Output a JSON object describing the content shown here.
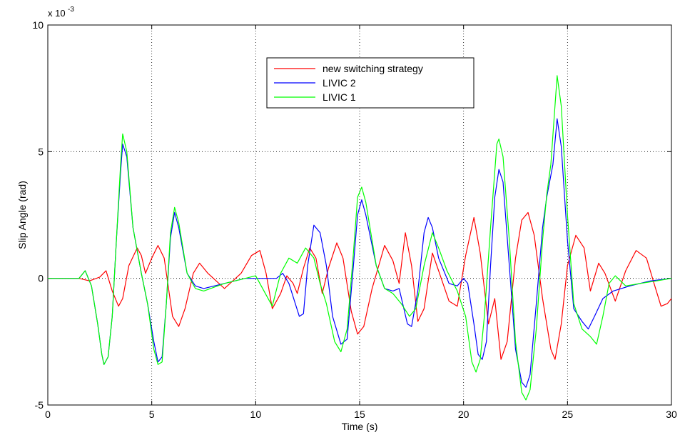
{
  "chart_data": {
    "type": "line",
    "title": "",
    "xlabel": "Time (s)",
    "ylabel": "Slip Angle (rad)",
    "scale_exponent_label": "x 10",
    "scale_exponent_value": "-3",
    "xlim": [
      0,
      30
    ],
    "ylim": [
      -5,
      10
    ],
    "xticks": [
      0,
      5,
      10,
      15,
      20,
      25,
      30
    ],
    "yticks": [
      -5,
      0,
      5,
      10
    ],
    "xtick_labels": [
      "0",
      "5",
      "10",
      "15",
      "20",
      "25",
      "30"
    ],
    "ytick_labels": [
      "-5",
      "0",
      "5",
      "10"
    ],
    "grid": true,
    "legend_position": "top-center",
    "series": [
      {
        "name": "new switching strategy",
        "color": "#ff0000",
        "points": [
          [
            0,
            0
          ],
          [
            1.5,
            0
          ],
          [
            2,
            -0.1
          ],
          [
            2.5,
            0.05
          ],
          [
            2.8,
            0.3
          ],
          [
            3.1,
            -0.5
          ],
          [
            3.4,
            -1.1
          ],
          [
            3.6,
            -0.8
          ],
          [
            3.9,
            0.5
          ],
          [
            4.3,
            1.2
          ],
          [
            4.5,
            0.9
          ],
          [
            4.7,
            0.2
          ],
          [
            5,
            0.8
          ],
          [
            5.3,
            1.3
          ],
          [
            5.6,
            0.8
          ],
          [
            6,
            -1.5
          ],
          [
            6.3,
            -1.9
          ],
          [
            6.6,
            -1.2
          ],
          [
            7,
            0.2
          ],
          [
            7.3,
            0.6
          ],
          [
            7.7,
            0.2
          ],
          [
            8.5,
            -0.4
          ],
          [
            9.3,
            0.2
          ],
          [
            9.8,
            0.9
          ],
          [
            10.2,
            1.1
          ],
          [
            10.5,
            0.2
          ],
          [
            10.8,
            -1.2
          ],
          [
            11.2,
            -0.6
          ],
          [
            11.5,
            0.1
          ],
          [
            11.8,
            -0.2
          ],
          [
            12,
            -0.6
          ],
          [
            12.3,
            0.4
          ],
          [
            12.6,
            1.2
          ],
          [
            12.9,
            0.8
          ],
          [
            13.2,
            -0.6
          ],
          [
            13.5,
            0.4
          ],
          [
            13.9,
            1.4
          ],
          [
            14.2,
            0.8
          ],
          [
            14.6,
            -1.3
          ],
          [
            14.9,
            -2.2
          ],
          [
            15.2,
            -1.9
          ],
          [
            15.6,
            -0.4
          ],
          [
            16.2,
            1.3
          ],
          [
            16.6,
            0.7
          ],
          [
            16.9,
            -0.2
          ],
          [
            17.2,
            1.8
          ],
          [
            17.5,
            0.5
          ],
          [
            17.8,
            -1.7
          ],
          [
            18.1,
            -1.2
          ],
          [
            18.5,
            1.0
          ],
          [
            18.8,
            0.3
          ],
          [
            19.3,
            -0.9
          ],
          [
            19.7,
            -1.1
          ],
          [
            20.1,
            0.9
          ],
          [
            20.5,
            2.4
          ],
          [
            20.8,
            1.0
          ],
          [
            21.2,
            -1.8
          ],
          [
            21.5,
            -0.8
          ],
          [
            21.8,
            -3.2
          ],
          [
            22.1,
            -2.5
          ],
          [
            22.5,
            0.8
          ],
          [
            22.8,
            2.3
          ],
          [
            23.1,
            2.6
          ],
          [
            23.4,
            1.7
          ],
          [
            23.8,
            -0.8
          ],
          [
            24.2,
            -2.8
          ],
          [
            24.4,
            -3.2
          ],
          [
            24.7,
            -1.8
          ],
          [
            25,
            0.5
          ],
          [
            25.4,
            1.7
          ],
          [
            25.8,
            1.2
          ],
          [
            26.1,
            -0.5
          ],
          [
            26.5,
            0.6
          ],
          [
            26.8,
            0.2
          ],
          [
            27.3,
            -0.9
          ],
          [
            27.8,
            0.3
          ],
          [
            28.3,
            1.1
          ],
          [
            28.8,
            0.8
          ],
          [
            29.2,
            -0.3
          ],
          [
            29.5,
            -1.1
          ],
          [
            29.8,
            -1.0
          ],
          [
            30,
            -0.8
          ]
        ]
      },
      {
        "name": "LIVIC 2",
        "color": "#0000ff",
        "points": [
          [
            0,
            0
          ],
          [
            1.5,
            0
          ],
          [
            1.8,
            0.3
          ],
          [
            2.1,
            -0.3
          ],
          [
            2.4,
            -1.8
          ],
          [
            2.6,
            -3.0
          ],
          [
            2.7,
            -3.4
          ],
          [
            2.9,
            -3.1
          ],
          [
            3.1,
            -1.5
          ],
          [
            3.3,
            1.5
          ],
          [
            3.5,
            4.2
          ],
          [
            3.6,
            5.3
          ],
          [
            3.8,
            4.8
          ],
          [
            4.1,
            2.0
          ],
          [
            4.5,
            0.2
          ],
          [
            4.8,
            -1.0
          ],
          [
            5.1,
            -2.5
          ],
          [
            5.3,
            -3.3
          ],
          [
            5.5,
            -3.1
          ],
          [
            5.7,
            -1.0
          ],
          [
            5.9,
            1.6
          ],
          [
            6.1,
            2.6
          ],
          [
            6.3,
            2.0
          ],
          [
            6.7,
            0.2
          ],
          [
            7.1,
            -0.3
          ],
          [
            7.5,
            -0.4
          ],
          [
            8.5,
            -0.2
          ],
          [
            9.5,
            0
          ],
          [
            10,
            0
          ],
          [
            11,
            0
          ],
          [
            11.3,
            0.2
          ],
          [
            11.6,
            -0.2
          ],
          [
            12.1,
            -1.5
          ],
          [
            12.3,
            -1.4
          ],
          [
            12.5,
            0.5
          ],
          [
            12.8,
            2.1
          ],
          [
            13.1,
            1.8
          ],
          [
            13.4,
            0.5
          ],
          [
            13.7,
            -1.5
          ],
          [
            14.1,
            -2.6
          ],
          [
            14.4,
            -2.4
          ],
          [
            14.7,
            0.5
          ],
          [
            14.9,
            2.5
          ],
          [
            15.1,
            3.1
          ],
          [
            15.3,
            2.5
          ],
          [
            15.8,
            0.5
          ],
          [
            16.2,
            -0.4
          ],
          [
            16.6,
            -0.5
          ],
          [
            16.9,
            -0.4
          ],
          [
            17.3,
            -1.8
          ],
          [
            17.5,
            -1.9
          ],
          [
            17.8,
            -0.5
          ],
          [
            18.1,
            1.8
          ],
          [
            18.3,
            2.4
          ],
          [
            18.5,
            2.0
          ],
          [
            18.8,
            0.8
          ],
          [
            19.3,
            -0.2
          ],
          [
            19.7,
            -0.3
          ],
          [
            20,
            0
          ],
          [
            20.2,
            -0.2
          ],
          [
            20.5,
            -1.8
          ],
          [
            20.7,
            -3.0
          ],
          [
            20.9,
            -3.2
          ],
          [
            21.1,
            -2.5
          ],
          [
            21.3,
            0.5
          ],
          [
            21.5,
            3.2
          ],
          [
            21.7,
            4.3
          ],
          [
            21.9,
            3.8
          ],
          [
            22.2,
            0.5
          ],
          [
            22.5,
            -2.8
          ],
          [
            22.8,
            -4.1
          ],
          [
            23,
            -4.3
          ],
          [
            23.2,
            -3.8
          ],
          [
            23.5,
            -1.0
          ],
          [
            23.8,
            2.0
          ],
          [
            24,
            3.2
          ],
          [
            24.3,
            4.5
          ],
          [
            24.5,
            6.3
          ],
          [
            24.7,
            5.2
          ],
          [
            25,
            1.5
          ],
          [
            25.3,
            -1.2
          ],
          [
            25.7,
            -1.7
          ],
          [
            26,
            -2.0
          ],
          [
            26.3,
            -1.5
          ],
          [
            26.7,
            -0.8
          ],
          [
            27.2,
            -0.5
          ],
          [
            28,
            -0.3
          ],
          [
            29,
            -0.1
          ],
          [
            30,
            0
          ]
        ]
      },
      {
        "name": "LIVIC 1",
        "color": "#00ff00",
        "points": [
          [
            0,
            0
          ],
          [
            1.5,
            0
          ],
          [
            1.8,
            0.3
          ],
          [
            2.1,
            -0.3
          ],
          [
            2.4,
            -1.8
          ],
          [
            2.6,
            -3.0
          ],
          [
            2.7,
            -3.4
          ],
          [
            2.9,
            -3.1
          ],
          [
            3.1,
            -1.5
          ],
          [
            3.3,
            1.5
          ],
          [
            3.5,
            4.5
          ],
          [
            3.6,
            5.7
          ],
          [
            3.8,
            5.0
          ],
          [
            4.1,
            2.0
          ],
          [
            4.5,
            0.2
          ],
          [
            4.8,
            -1.0
          ],
          [
            5.1,
            -2.8
          ],
          [
            5.3,
            -3.4
          ],
          [
            5.5,
            -3.3
          ],
          [
            5.7,
            -1.0
          ],
          [
            5.9,
            1.8
          ],
          [
            6.1,
            2.8
          ],
          [
            6.3,
            2.2
          ],
          [
            6.7,
            0.2
          ],
          [
            7.1,
            -0.4
          ],
          [
            7.5,
            -0.5
          ],
          [
            8.5,
            -0.2
          ],
          [
            9.5,
            0
          ],
          [
            10,
            0.1
          ],
          [
            10.4,
            -0.5
          ],
          [
            10.8,
            -1.1
          ],
          [
            11.2,
            0.2
          ],
          [
            11.6,
            0.8
          ],
          [
            12,
            0.6
          ],
          [
            12.4,
            1.2
          ],
          [
            12.8,
            0.8
          ],
          [
            13.1,
            -0.2
          ],
          [
            13.4,
            -1.0
          ],
          [
            13.8,
            -2.5
          ],
          [
            14.1,
            -2.9
          ],
          [
            14.4,
            -2.0
          ],
          [
            14.7,
            1.0
          ],
          [
            14.9,
            3.2
          ],
          [
            15.1,
            3.6
          ],
          [
            15.3,
            3.0
          ],
          [
            15.8,
            0.5
          ],
          [
            16.2,
            -0.4
          ],
          [
            16.6,
            -0.6
          ],
          [
            17,
            -1.0
          ],
          [
            17.4,
            -1.5
          ],
          [
            17.7,
            -1.2
          ],
          [
            18.1,
            0.5
          ],
          [
            18.5,
            1.8
          ],
          [
            18.8,
            1.2
          ],
          [
            19.2,
            0.3
          ],
          [
            19.7,
            -0.5
          ],
          [
            20.1,
            -1.5
          ],
          [
            20.4,
            -3.3
          ],
          [
            20.6,
            -3.7
          ],
          [
            20.8,
            -3.2
          ],
          [
            21,
            -1.5
          ],
          [
            21.3,
            2.0
          ],
          [
            21.6,
            5.3
          ],
          [
            21.7,
            5.5
          ],
          [
            21.9,
            4.8
          ],
          [
            22.2,
            1.5
          ],
          [
            22.5,
            -2.5
          ],
          [
            22.8,
            -4.5
          ],
          [
            23,
            -4.8
          ],
          [
            23.2,
            -4.4
          ],
          [
            23.5,
            -2.0
          ],
          [
            23.8,
            1.5
          ],
          [
            24,
            3.3
          ],
          [
            24.2,
            4.5
          ],
          [
            24.5,
            8.0
          ],
          [
            24.7,
            6.8
          ],
          [
            25,
            2.5
          ],
          [
            25.3,
            -1.0
          ],
          [
            25.7,
            -2.0
          ],
          [
            26.1,
            -2.3
          ],
          [
            26.4,
            -2.6
          ],
          [
            26.7,
            -1.5
          ],
          [
            27,
            -0.2
          ],
          [
            27.3,
            0.1
          ],
          [
            27.8,
            -0.3
          ],
          [
            28.5,
            -0.2
          ],
          [
            29.3,
            -0.1
          ],
          [
            30,
            0
          ]
        ]
      }
    ]
  }
}
